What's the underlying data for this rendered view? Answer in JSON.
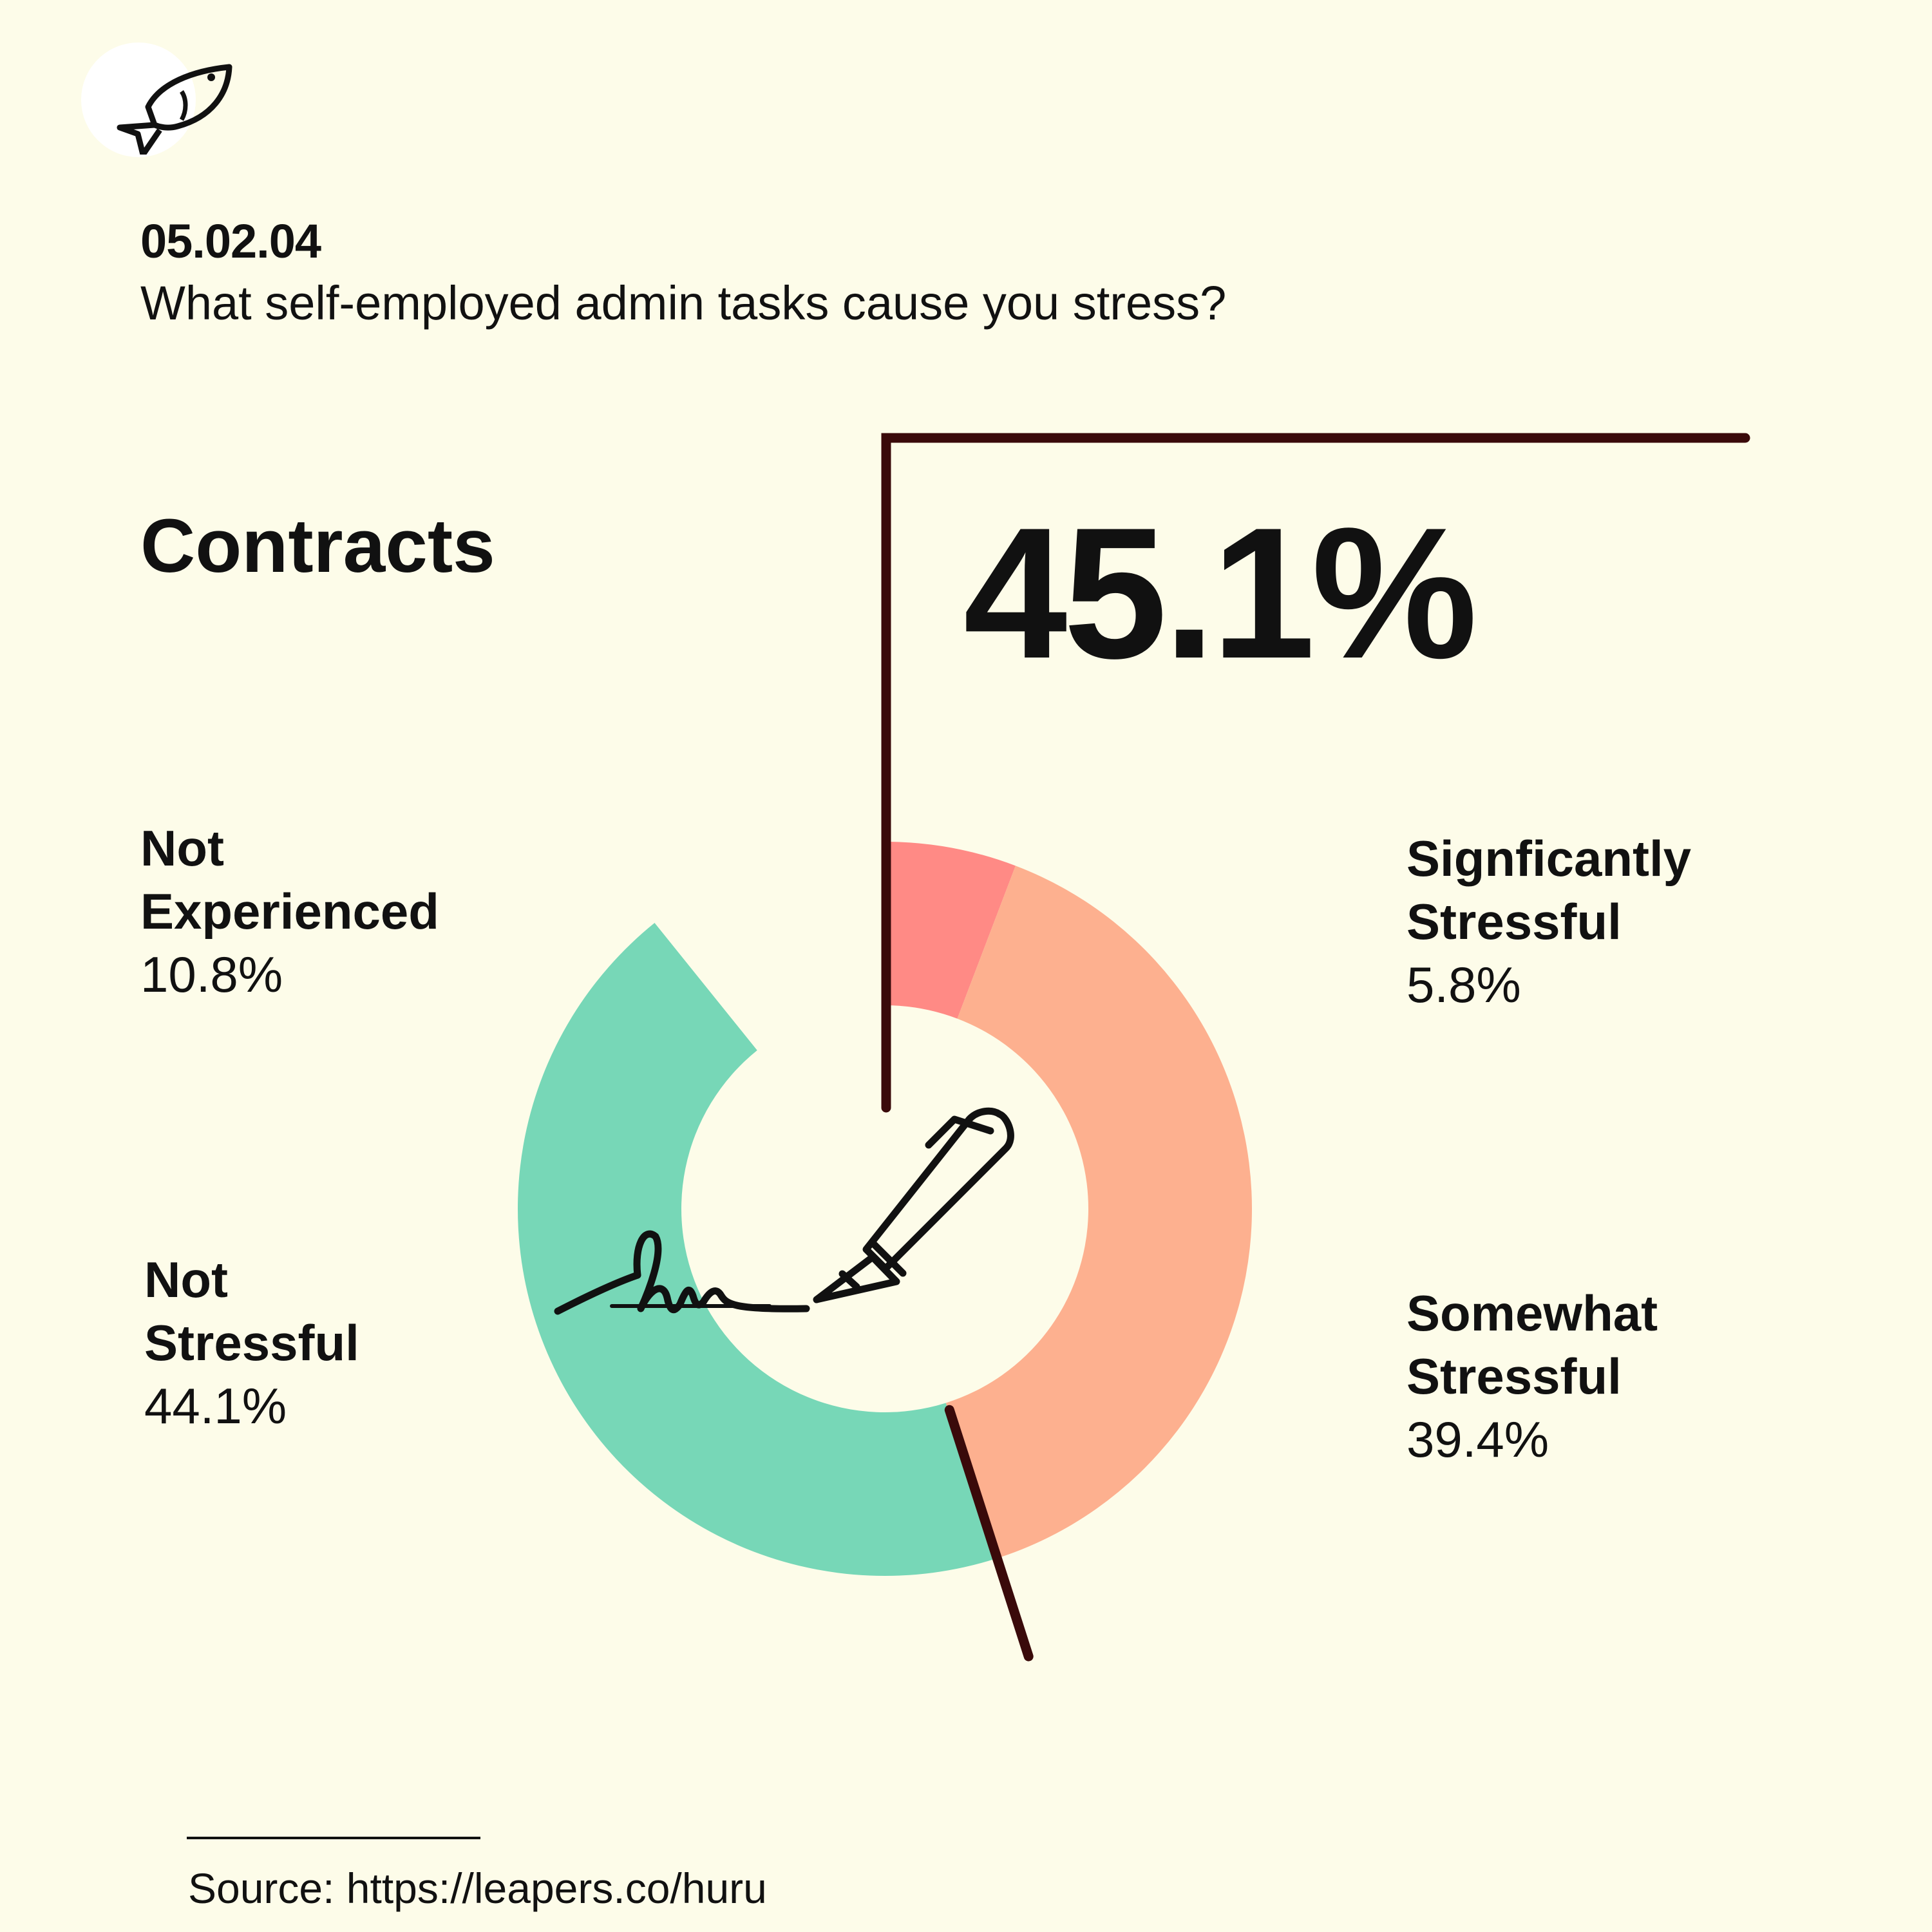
{
  "header": {
    "code": "05.02.04",
    "question": "What self-employed admin tasks cause you stress?"
  },
  "logo": {
    "icon": "fish-icon"
  },
  "category": "Contracts",
  "highlight": {
    "value": "45.1%"
  },
  "center_icon": "signature-pen-icon",
  "labels": {
    "not_experienced": {
      "name_line1": "Not",
      "name_line2": "Experienced",
      "pct": "10.8%"
    },
    "not_stressful": {
      "name_line1": "Not",
      "name_line2": "Stressful",
      "pct": "44.1%"
    },
    "significantly_stressful": {
      "name_line1": "Signficantly",
      "name_line2": "Stressful",
      "pct": "5.8%"
    },
    "somewhat_stressful": {
      "name_line1": "Somewhat",
      "name_line2": "Stressful",
      "pct": "39.4%"
    }
  },
  "source": "Source: https://leapers.co/huru",
  "colors": {
    "background": "#fdfce9",
    "significantly_stressful": "#ff8a85",
    "somewhat_stressful": "#fdb08f",
    "not_stressful": "#77d7b7",
    "not_experienced": "#fdfce9",
    "bracket": "#3a0a0a",
    "text": "#111111"
  },
  "chart_data": {
    "type": "pie",
    "variant": "donut",
    "title": "Contracts",
    "start": "top",
    "direction": "clockwise",
    "segments": [
      {
        "name": "Signficantly Stressful",
        "value": 5.8
      },
      {
        "name": "Somewhat Stressful",
        "value": 39.4
      },
      {
        "name": "Not Stressful",
        "value": 44.1
      },
      {
        "name": "Not Experienced",
        "value": 10.8
      }
    ],
    "highlight": {
      "segments": [
        "Signficantly Stressful",
        "Somewhat Stressful"
      ],
      "total": 45.1
    }
  }
}
